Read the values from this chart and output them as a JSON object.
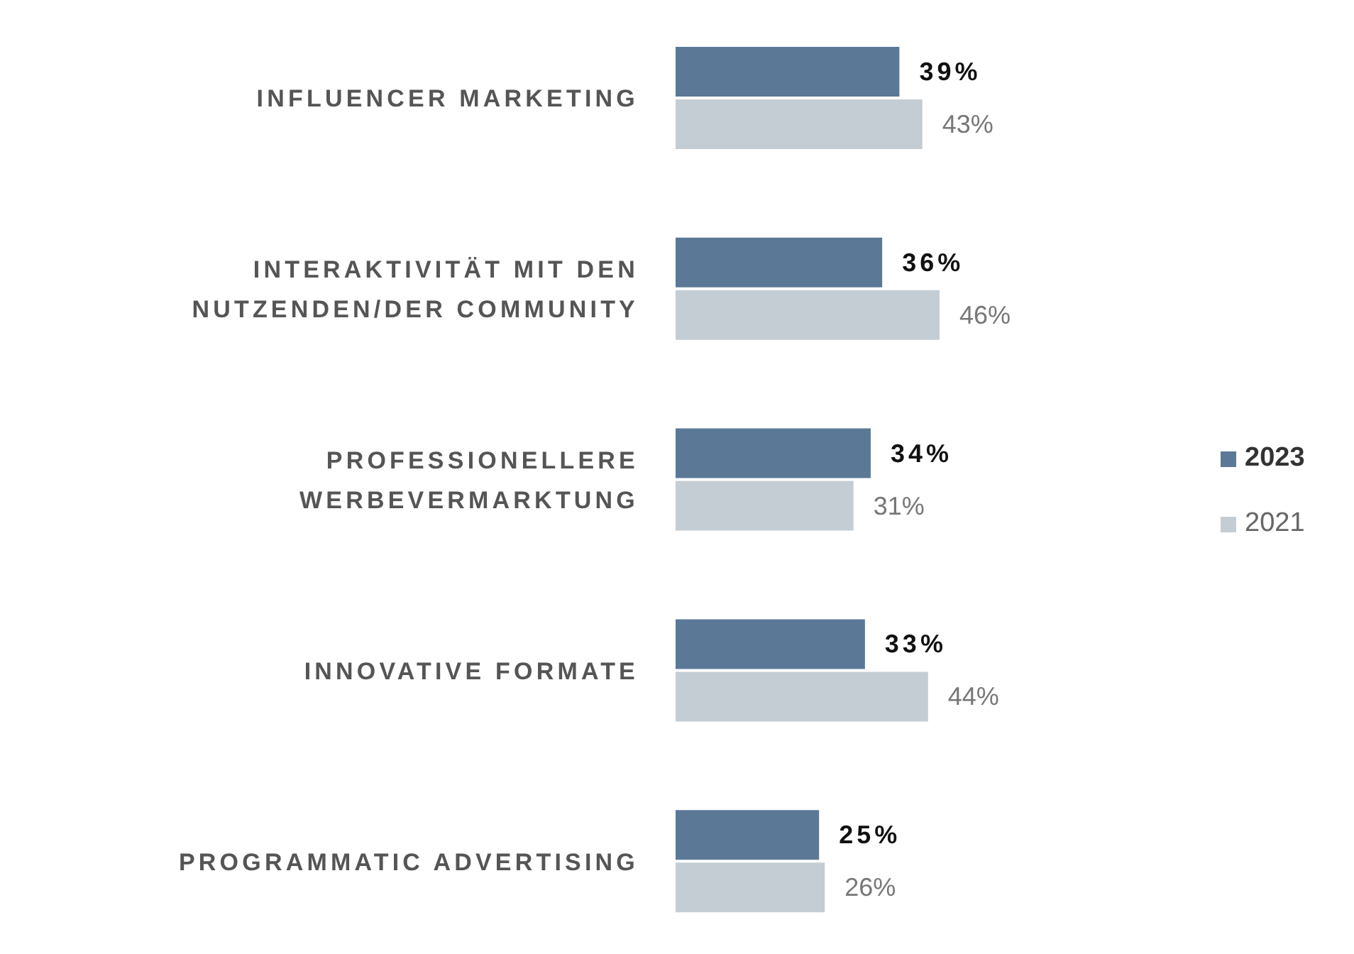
{
  "chart_data": {
    "type": "bar",
    "orientation": "horizontal",
    "categories": [
      "INFLUENCER MARKETING",
      "INTERAKTIVITÄT MIT DEN NUTZENDEN/DER COMMUNITY",
      "PROFESSIONELLERE WERBEVERMARKTUNG",
      "INNOVATIVE FORMATE",
      "PROGRAMMATIC ADVERTISING"
    ],
    "series": [
      {
        "name": "2023",
        "color": "#5b7897",
        "values": [
          39,
          36,
          34,
          33,
          25
        ],
        "value_labels": [
          "39%",
          "36%",
          "34%",
          "33%",
          "25%"
        ]
      },
      {
        "name": "2021",
        "color": "#c5cdd4",
        "values": [
          43,
          46,
          31,
          44,
          26
        ],
        "value_labels": [
          "43%",
          "46%",
          "31%",
          "44%",
          "26%"
        ]
      }
    ],
    "legend": "right",
    "grid": false
  }
}
